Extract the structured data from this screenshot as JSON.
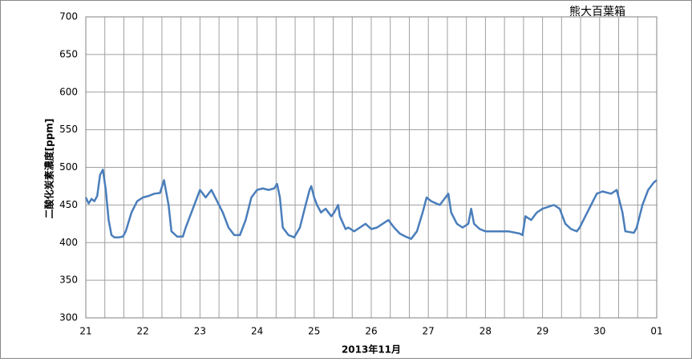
{
  "chart_data": {
    "type": "line",
    "title": "熊大百葉箱",
    "x_label": "2013年11月",
    "y_label": "二酸化炭素濃度[ppm]",
    "x": [
      21,
      21.05,
      21.1,
      21.15,
      21.2,
      21.25,
      21.3,
      21.35,
      21.4,
      21.45,
      21.5,
      21.58,
      21.65,
      21.7,
      21.8,
      21.9,
      22.0,
      22.1,
      22.2,
      22.3,
      22.37,
      22.45,
      22.5,
      22.6,
      22.7,
      22.75,
      22.85,
      22.95,
      23.0,
      23.1,
      23.2,
      23.3,
      23.4,
      23.5,
      23.6,
      23.7,
      23.8,
      23.9,
      24.0,
      24.1,
      24.2,
      24.3,
      24.35,
      24.4,
      24.45,
      24.55,
      24.65,
      24.75,
      24.85,
      24.92,
      24.95,
      25.0,
      25.05,
      25.12,
      25.2,
      25.3,
      25.35,
      25.42,
      25.45,
      25.55,
      25.6,
      25.7,
      25.8,
      25.9,
      26.0,
      26.1,
      26.2,
      26.3,
      26.4,
      26.5,
      26.6,
      26.7,
      26.8,
      26.9,
      26.97,
      27.05,
      27.2,
      27.3,
      27.35,
      27.4,
      27.5,
      27.6,
      27.7,
      27.75,
      27.8,
      27.9,
      28.0,
      28.2,
      28.4,
      28.6,
      28.65,
      28.7,
      28.8,
      28.9,
      29.0,
      29.2,
      29.3,
      29.4,
      29.5,
      29.6,
      29.65,
      29.75,
      29.85,
      29.95,
      30.05,
      30.2,
      30.3,
      30.4,
      30.45,
      30.6,
      30.65,
      30.75,
      30.85,
      30.95,
      31.0
    ],
    "series": [
      {
        "name": "二酸化炭素濃度",
        "color": "#4a7ebb",
        "values": [
          460,
          452,
          458,
          455,
          462,
          490,
          497,
          470,
          430,
          410,
          407,
          407,
          408,
          415,
          440,
          455,
          460,
          462,
          465,
          466,
          483,
          450,
          415,
          408,
          408,
          420,
          440,
          460,
          470,
          460,
          470,
          455,
          440,
          420,
          410,
          410,
          430,
          460,
          470,
          472,
          470,
          472,
          478,
          460,
          420,
          410,
          407,
          420,
          450,
          470,
          475,
          460,
          450,
          440,
          445,
          435,
          440,
          450,
          435,
          418,
          420,
          415,
          420,
          425,
          418,
          420,
          425,
          430,
          420,
          412,
          408,
          405,
          415,
          440,
          460,
          455,
          450,
          460,
          465,
          440,
          425,
          420,
          425,
          445,
          425,
          418,
          415,
          415,
          415,
          412,
          410,
          435,
          430,
          440,
          445,
          450,
          445,
          425,
          418,
          415,
          420,
          435,
          450,
          465,
          468,
          465,
          470,
          440,
          415,
          413,
          420,
          450,
          470,
          480,
          483
        ]
      }
    ],
    "xlim": [
      21,
      31
    ],
    "xticks": [
      21,
      22,
      23,
      24,
      25,
      26,
      27,
      28,
      29,
      30,
      {
        "value": 31,
        "label": "01"
      }
    ],
    "ylim": [
      300,
      700
    ],
    "yticks": [
      300,
      350,
      400,
      450,
      500,
      550,
      600,
      650,
      700
    ],
    "grid": true
  }
}
